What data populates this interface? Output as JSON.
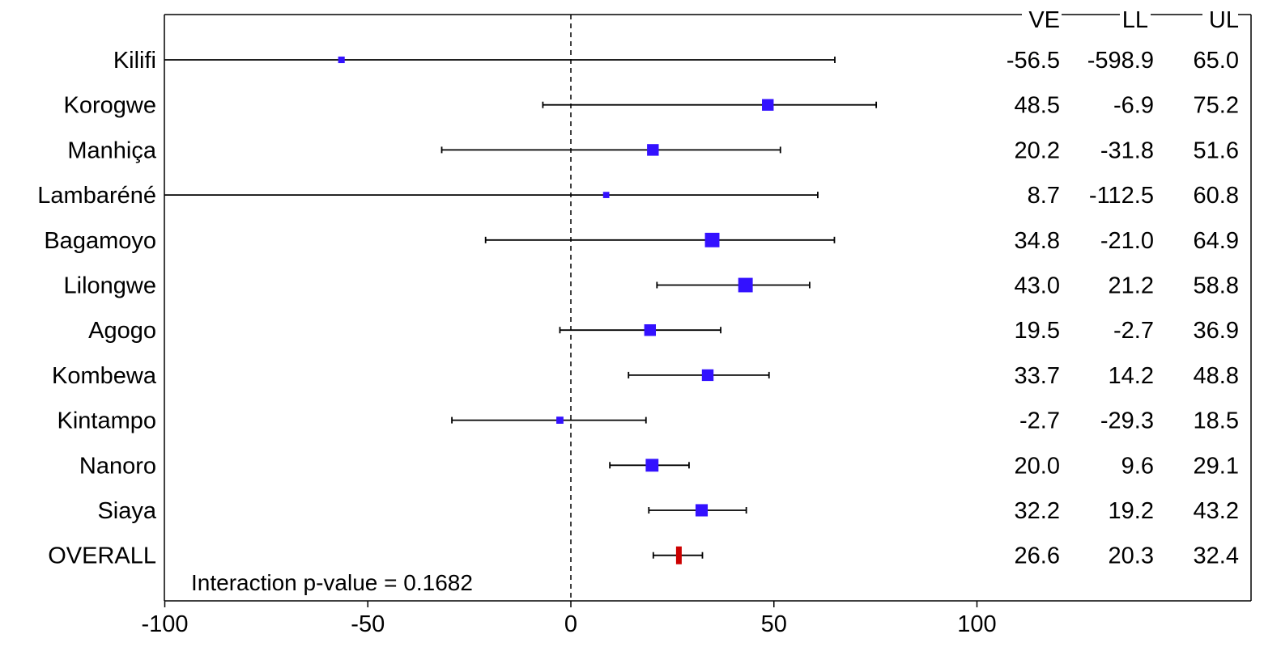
{
  "chart_data": {
    "type": "forest",
    "xlim": [
      -100,
      100
    ],
    "x_ticks": [
      -100,
      -50,
      0,
      50,
      100
    ],
    "x_tick_labels": [
      "-100",
      "-50",
      "0",
      "50",
      "100"
    ],
    "reference_line": 0,
    "column_headers": [
      "VE",
      "LL",
      "UL"
    ],
    "annotation": "Interaction p-value = 0.1682",
    "colors": {
      "site_marker": "#3311ff",
      "overall_marker": "#cc0000",
      "line": "#000000"
    },
    "rows": [
      {
        "label": "Kilifi",
        "ve": -56.5,
        "ll": -598.9,
        "ul": 65.0,
        "ve_text": "-56.5",
        "ll_text": "-598.9",
        "ul_text": "65.0",
        "weight": 0.15
      },
      {
        "label": "Korogwe",
        "ve": 48.5,
        "ll": -6.9,
        "ul": 75.2,
        "ve_text": "48.5",
        "ll_text": "-6.9",
        "ul_text": "75.2",
        "weight": 0.6
      },
      {
        "label": "Manhiça",
        "ve": 20.2,
        "ll": -31.8,
        "ul": 51.6,
        "ve_text": "20.2",
        "ll_text": "-31.8",
        "ul_text": "51.6",
        "weight": 0.6
      },
      {
        "label": "Lambaréné",
        "ve": 8.7,
        "ll": -112.5,
        "ul": 60.8,
        "ve_text": "8.7",
        "ll_text": "-112.5",
        "ul_text": "60.8",
        "weight": 0.12
      },
      {
        "label": "Bagamoyo",
        "ve": 34.8,
        "ll": -21.0,
        "ul": 64.9,
        "ve_text": "34.8",
        "ll_text": "-21.0",
        "ul_text": "64.9",
        "weight": 0.85
      },
      {
        "label": "Lilongwe",
        "ve": 43.0,
        "ll": 21.2,
        "ul": 58.8,
        "ve_text": "43.0",
        "ll_text": "21.2",
        "ul_text": "58.8",
        "weight": 0.85
      },
      {
        "label": "Agogo",
        "ve": 19.5,
        "ll": -2.7,
        "ul": 36.9,
        "ve_text": "19.5",
        "ll_text": "-2.7",
        "ul_text": "36.9",
        "weight": 0.6
      },
      {
        "label": "Kombewa",
        "ve": 33.7,
        "ll": 14.2,
        "ul": 48.8,
        "ve_text": "33.7",
        "ll_text": "14.2",
        "ul_text": "48.8",
        "weight": 0.6
      },
      {
        "label": "Kintampo",
        "ve": -2.7,
        "ll": -29.3,
        "ul": 18.5,
        "ve_text": "-2.7",
        "ll_text": "-29.3",
        "ul_text": "18.5",
        "weight": 0.2
      },
      {
        "label": "Nanoro",
        "ve": 20.0,
        "ll": 9.6,
        "ul": 29.1,
        "ve_text": "20.0",
        "ll_text": "9.6",
        "ul_text": "29.1",
        "weight": 0.7
      },
      {
        "label": "Siaya",
        "ve": 32.2,
        "ll": 19.2,
        "ul": 43.2,
        "ve_text": "32.2",
        "ll_text": "19.2",
        "ul_text": "43.2",
        "weight": 0.65
      },
      {
        "label": "OVERALL",
        "ve": 26.6,
        "ll": 20.3,
        "ul": 32.4,
        "ve_text": "26.6",
        "ll_text": "20.3",
        "ul_text": "32.4",
        "overall": true
      }
    ]
  }
}
